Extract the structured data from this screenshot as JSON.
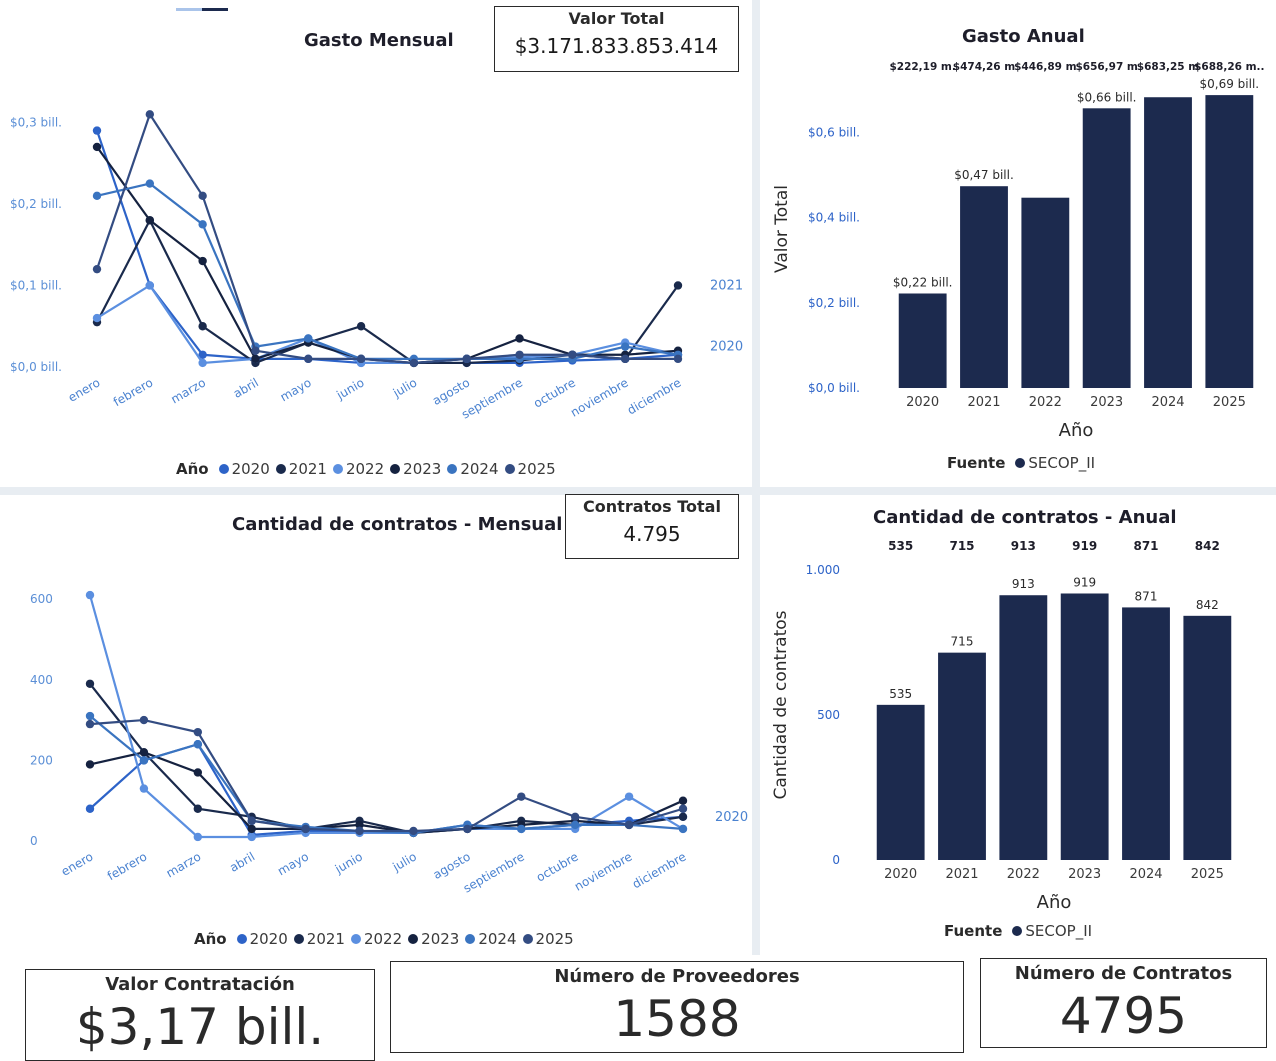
{
  "colors": {
    "2020": "#2d63c8",
    "2021": "#1a2a4c",
    "2022": "#5b8fe0",
    "2023": "#152240",
    "2024": "#3a74c0",
    "2025": "#334c82",
    "bar": "#1c2a4e"
  },
  "kpis": {
    "valor_total": {
      "label": "Valor Total",
      "value": "$3.171.833.853.414"
    },
    "contratos_total": {
      "label": "Contratos Total",
      "value": "4.795"
    }
  },
  "cards": {
    "valor_contratacion": {
      "label": "Valor Contratación",
      "value": "$3,17 bill."
    },
    "numero_proveedores": {
      "label": "Número de Proveedores",
      "value": "1588"
    },
    "numero_contratos": {
      "label": "Número de Contratos",
      "value": "4795"
    }
  },
  "legend": {
    "title": "Año",
    "items": [
      "2020",
      "2021",
      "2022",
      "2023",
      "2024",
      "2025"
    ]
  },
  "fuente_legend": {
    "title": "Fuente",
    "item": "SECOP_II"
  },
  "chart_data": [
    {
      "id": "gasto_mensual",
      "type": "line",
      "title": "Gasto Mensual",
      "categories": [
        "enero",
        "febrero",
        "marzo",
        "abril",
        "mayo",
        "junio",
        "julio",
        "agosto",
        "septiembre",
        "octubre",
        "noviembre",
        "diciembre"
      ],
      "y_ticks": [
        {
          "v": 0,
          "label": "$0,0 bill."
        },
        {
          "v": 0.1,
          "label": "$0,1 bill."
        },
        {
          "v": 0.2,
          "label": "$0,2 bill."
        },
        {
          "v": 0.3,
          "label": "$0,3 bill."
        }
      ],
      "ylim": [
        0,
        0.33
      ],
      "series": [
        {
          "name": "2020",
          "values": [
            0.29,
            0.1,
            0.015,
            0.01,
            0.01,
            0.005,
            0.005,
            0.005,
            0.005,
            0.008,
            0.01,
            0.015
          ]
        },
        {
          "name": "2021",
          "values": [
            0.055,
            0.18,
            0.05,
            0.005,
            0.03,
            0.05,
            0.005,
            0.005,
            0.008,
            0.015,
            0.01,
            0.1
          ]
        },
        {
          "name": "2022",
          "values": [
            0.06,
            0.1,
            0.005,
            0.01,
            0.035,
            0.005,
            0.005,
            0.01,
            0.012,
            0.015,
            0.03,
            0.015
          ]
        },
        {
          "name": "2023",
          "values": [
            0.27,
            0.18,
            0.13,
            0.01,
            0.03,
            0.01,
            0.005,
            0.01,
            0.035,
            0.015,
            0.015,
            0.02
          ]
        },
        {
          "name": "2024",
          "values": [
            0.21,
            0.225,
            0.175,
            0.025,
            0.035,
            0.01,
            0.01,
            0.01,
            0.01,
            0.01,
            0.025,
            0.015
          ]
        },
        {
          "name": "2025",
          "values": [
            0.12,
            0.31,
            0.21,
            0.02,
            0.01,
            0.01,
            0.005,
            0.01,
            0.015,
            0.015,
            0.01,
            0.01
          ]
        }
      ],
      "end_labels": [
        {
          "text": "2021",
          "v": 0.1
        },
        {
          "text": "2020",
          "v": 0.025
        }
      ]
    },
    {
      "id": "gasto_anual",
      "type": "bar",
      "title": "Gasto Anual",
      "categories": [
        "2020",
        "2021",
        "2022",
        "2023",
        "2024",
        "2025"
      ],
      "values": [
        0.222,
        0.474,
        0.447,
        0.657,
        0.683,
        0.688
      ],
      "ylim": [
        0,
        0.7
      ],
      "y_ticks": [
        {
          "v": 0,
          "label": "$0,0 bill."
        },
        {
          "v": 0.2,
          "label": "$0,2 bill."
        },
        {
          "v": 0.4,
          "label": "$0,4 bill."
        },
        {
          "v": 0.6,
          "label": "$0,6 bill."
        }
      ],
      "data_labels": [
        "$0,22 bill.",
        "$0,47 bill.",
        "",
        "$0,66 bill.",
        "",
        "$0,69 bill."
      ],
      "top_labels": [
        "$222,19 m.",
        "$474,26 m",
        "$446,89 m",
        "$656,97 m",
        "$683,25 m",
        "$688,26 m.."
      ],
      "xlabel": "Año",
      "ylabel": "Valor Total"
    },
    {
      "id": "contratos_mensual",
      "type": "line",
      "title": "Cantidad de contratos - Mensual",
      "categories": [
        "enero",
        "febrero",
        "marzo",
        "abril",
        "mayo",
        "junio",
        "julio",
        "agosto",
        "septiembre",
        "octubre",
        "noviembre",
        "diciembre"
      ],
      "y_ticks": [
        {
          "v": 0,
          "label": "0"
        },
        {
          "v": 200,
          "label": "200"
        },
        {
          "v": 400,
          "label": "400"
        },
        {
          "v": 600,
          "label": "600"
        }
      ],
      "ylim": [
        0,
        640
      ],
      "series": [
        {
          "name": "2020",
          "values": [
            80,
            200,
            240,
            15,
            25,
            25,
            20,
            40,
            30,
            40,
            50,
            60
          ]
        },
        {
          "name": "2021",
          "values": [
            390,
            220,
            80,
            60,
            30,
            50,
            20,
            30,
            50,
            40,
            40,
            60
          ]
        },
        {
          "name": "2022",
          "values": [
            610,
            130,
            10,
            10,
            20,
            20,
            20,
            30,
            30,
            30,
            110,
            30
          ]
        },
        {
          "name": "2023",
          "values": [
            190,
            220,
            170,
            30,
            30,
            40,
            20,
            30,
            40,
            50,
            40,
            100
          ]
        },
        {
          "name": "2024",
          "values": [
            310,
            200,
            240,
            50,
            35,
            25,
            20,
            40,
            30,
            40,
            40,
            30
          ]
        },
        {
          "name": "2025",
          "values": [
            290,
            300,
            270,
            50,
            30,
            25,
            25,
            30,
            110,
            60,
            40,
            80
          ]
        }
      ],
      "end_labels": [
        {
          "text": "2020",
          "v": 60
        }
      ]
    },
    {
      "id": "contratos_anual",
      "type": "bar",
      "title": "Cantidad de contratos - Anual",
      "categories": [
        "2020",
        "2021",
        "2022",
        "2023",
        "2024",
        "2025"
      ],
      "values": [
        535,
        715,
        913,
        919,
        871,
        842
      ],
      "ylim": [
        0,
        1000
      ],
      "y_ticks": [
        {
          "v": 0,
          "label": "0"
        },
        {
          "v": 500,
          "label": "500"
        },
        {
          "v": 1000,
          "label": "1.000"
        }
      ],
      "data_labels": [
        "535",
        "715",
        "913",
        "919",
        "871",
        "842"
      ],
      "top_labels": [
        "535",
        "715",
        "913",
        "919",
        "871",
        "842"
      ],
      "xlabel": "Año",
      "ylabel": "Cantidad de contratos"
    }
  ]
}
